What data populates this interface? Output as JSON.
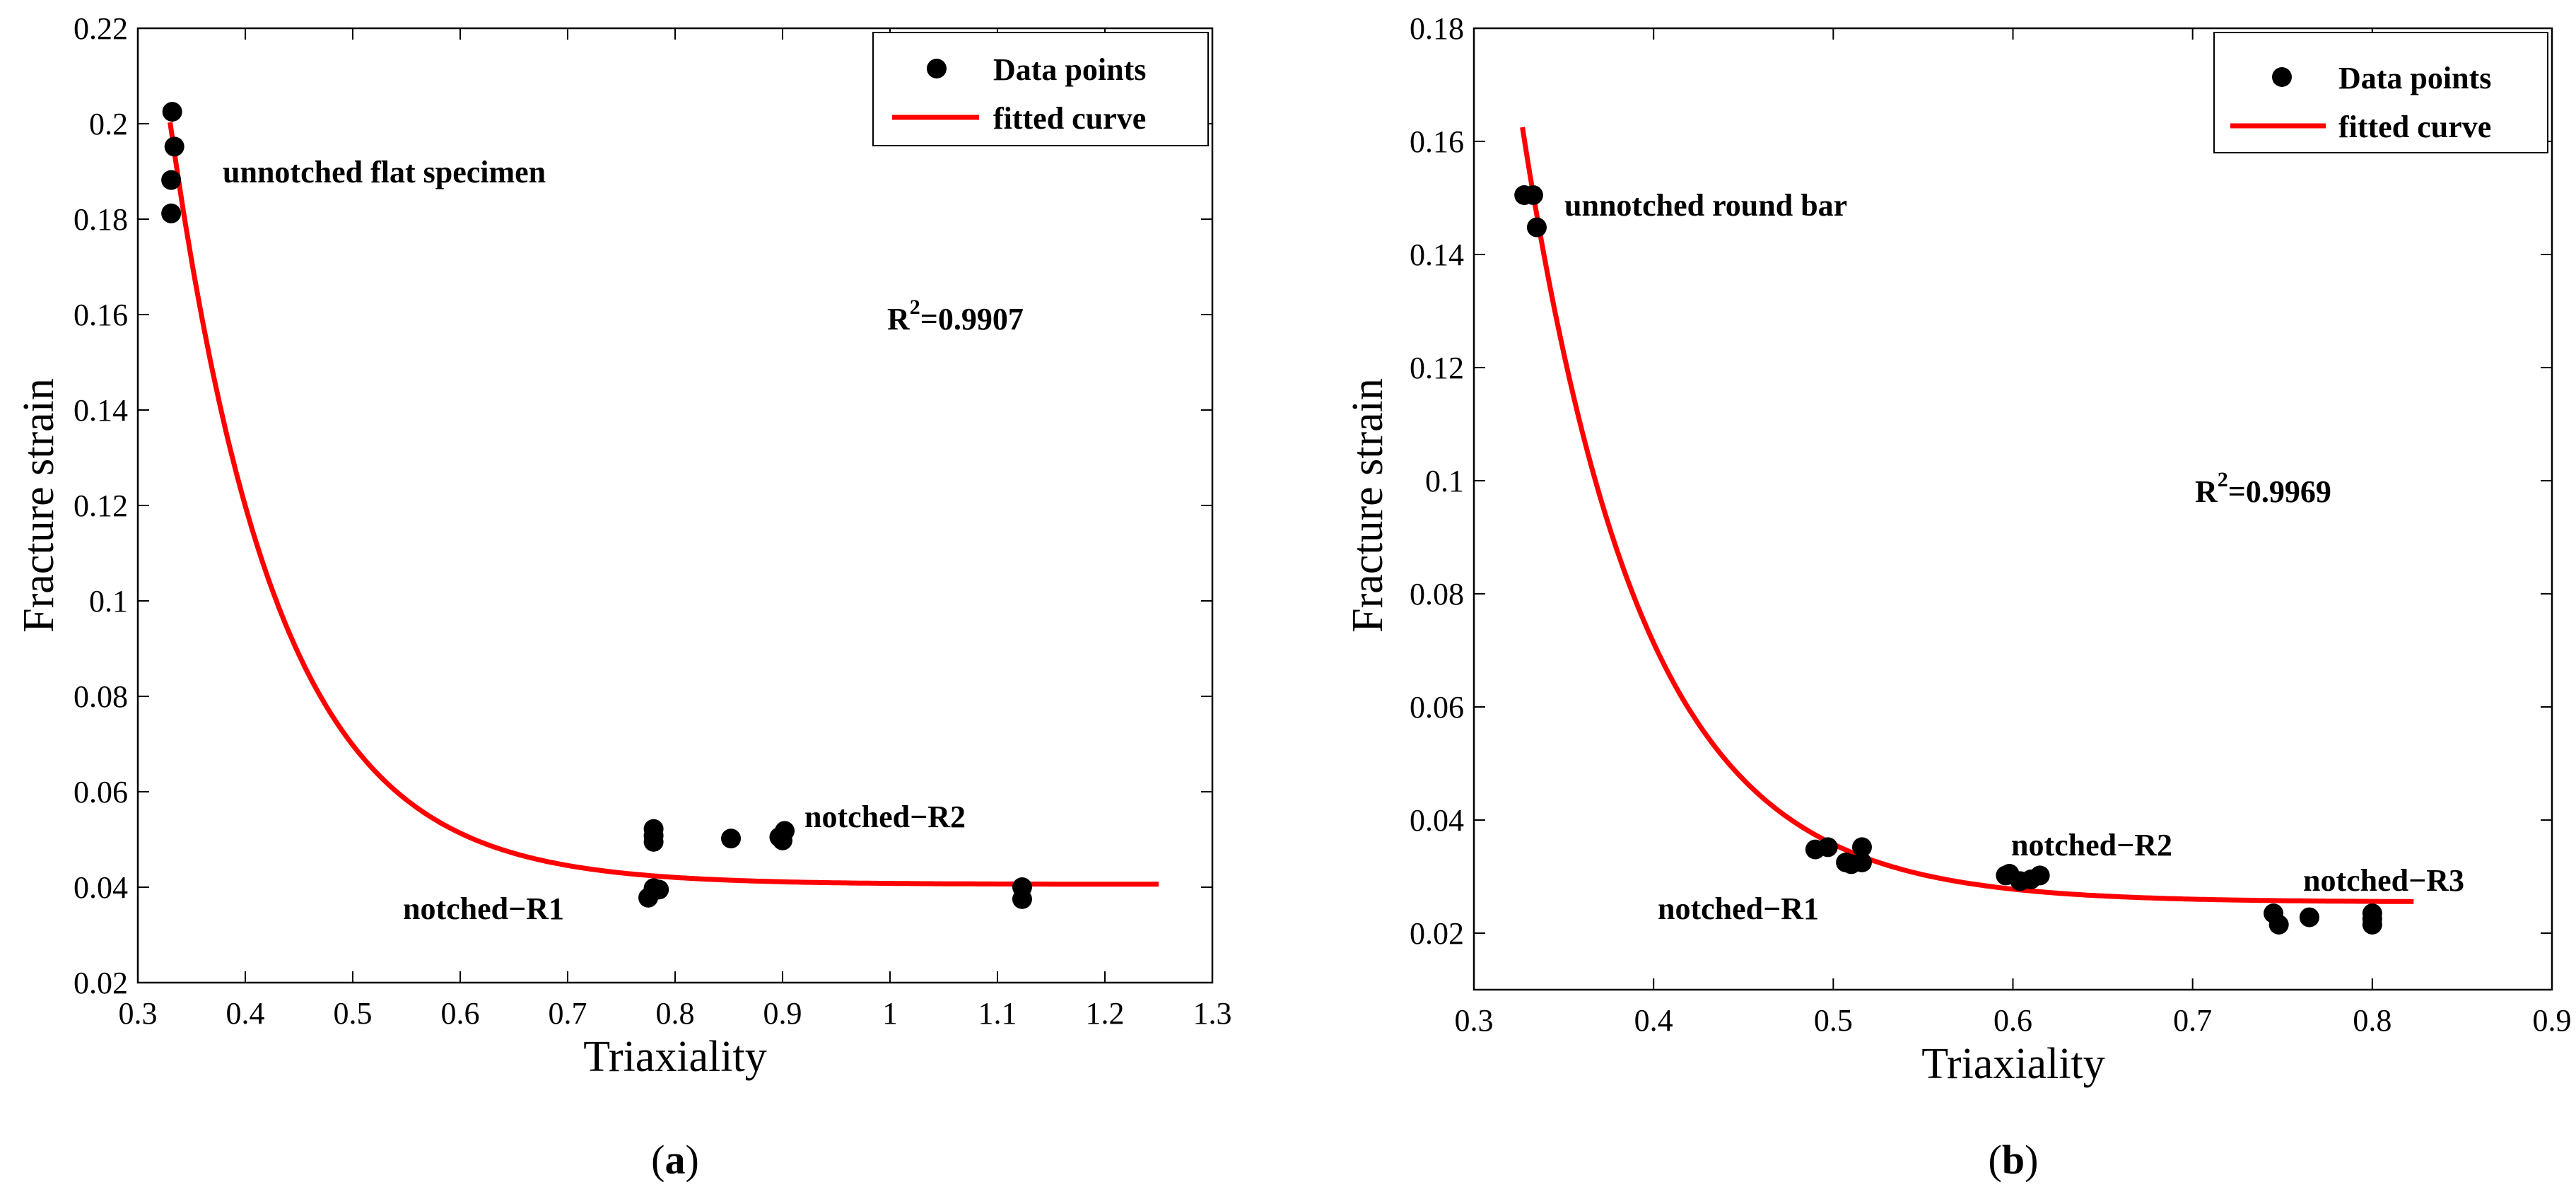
{
  "chart_data": [
    {
      "type": "scatter",
      "panel": "a",
      "caption_open": "(",
      "caption_letter": "a",
      "caption_close": ")",
      "xlabel": "Triaxiality",
      "ylabel": "Fracture strain",
      "xlim": [
        0.3,
        1.3
      ],
      "ylim": [
        0.02,
        0.22
      ],
      "xticks": [
        "0.3",
        "0.4",
        "0.5",
        "0.6",
        "0.7",
        "0.8",
        "0.9",
        "1",
        "1.1",
        "1.2",
        "1.3"
      ],
      "yticks": [
        "0.02",
        "0.04",
        "0.06",
        "0.08",
        "0.1",
        "0.12",
        "0.14",
        "0.16",
        "0.18",
        "0.2",
        "0.22"
      ],
      "legend": {
        "position": "top-right",
        "points_label": "Data points",
        "curve_label": "fitted curve"
      },
      "r2_prefix": "R",
      "r2_sup": "2",
      "r2_value": "=0.9907",
      "annotations": [
        "unnotched flat specimen",
        "notched−R2",
        "notched−R1"
      ],
      "series": [
        {
          "name": "Data points",
          "x": [
            0.332,
            0.334,
            0.331,
            0.331,
            0.775,
            0.78,
            0.785,
            0.78,
            0.78,
            0.78,
            0.852,
            0.897,
            0.902,
            0.9,
            1.123,
            1.123
          ],
          "y": [
            0.2025,
            0.1952,
            0.1882,
            0.1812,
            0.0378,
            0.0398,
            0.0395,
            0.0495,
            0.0508,
            0.0522,
            0.0502,
            0.0505,
            0.0518,
            0.0498,
            0.04,
            0.0375
          ]
        },
        {
          "name": "fitted curve",
          "model": {
            "a": 0.0406,
            "b": 0.1597,
            "c": 10.0,
            "x0": 0.33,
            "x_end": 1.25
          }
        }
      ]
    },
    {
      "type": "scatter",
      "panel": "b",
      "caption_open": "(",
      "caption_letter": "b",
      "caption_close": ")",
      "xlabel": "Triaxiality",
      "ylabel": "Fracture strain",
      "xlim": [
        0.3,
        0.9
      ],
      "ylim": [
        0.01,
        0.18
      ],
      "xticks": [
        "0.3",
        "0.4",
        "0.5",
        "0.6",
        "0.7",
        "0.8",
        "0.9"
      ],
      "yticks": [
        "0.02",
        "0.04",
        "0.06",
        "0.08",
        "0.1",
        "0.12",
        "0.14",
        "0.16",
        "0.18"
      ],
      "legend": {
        "position": "top-right",
        "points_label": "Data points",
        "curve_label": "fitted curve"
      },
      "r2_prefix": "R",
      "r2_sup": "2",
      "r2_value": "=0.9969",
      "annotations": [
        "unnotched round bar",
        "notched−R2",
        "notched−R1",
        "notched−R3"
      ],
      "series": [
        {
          "name": "Data points",
          "x": [
            0.328,
            0.333,
            0.335,
            0.49,
            0.497,
            0.507,
            0.51,
            0.516,
            0.516,
            0.596,
            0.598,
            0.604,
            0.61,
            0.615,
            0.745,
            0.748,
            0.765,
            0.8,
            0.8,
            0.8
          ],
          "y": [
            0.1505,
            0.1505,
            0.1448,
            0.0348,
            0.0352,
            0.0325,
            0.0322,
            0.0325,
            0.0352,
            0.0302,
            0.0305,
            0.0292,
            0.0295,
            0.0302,
            0.0235,
            0.0215,
            0.0228,
            0.0235,
            0.0225,
            0.0215
          ]
        },
        {
          "name": "fitted curve",
          "model": {
            "a": 0.0255,
            "b": 0.137,
            "c": 15.0,
            "x0": 0.327,
            "x_end": 0.823
          }
        }
      ]
    }
  ]
}
